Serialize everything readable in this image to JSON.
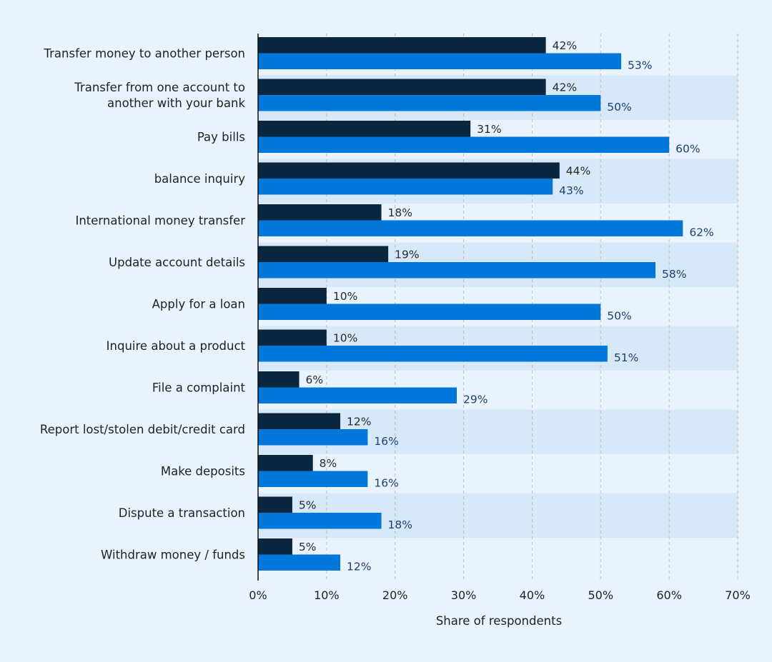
{
  "chart_data": {
    "type": "bar",
    "orientation": "horizontal",
    "title": "",
    "xlabel": "Share of respondents",
    "ylabel": "",
    "xlim": [
      0,
      70
    ],
    "xticks": [
      "0%",
      "10%",
      "20%",
      "30%",
      "40%",
      "50%",
      "60%",
      "70%"
    ],
    "grid": "vertical dashed",
    "legend": "none",
    "categories": [
      [
        "Transfer money to another person"
      ],
      [
        "Transfer from one account to",
        "another with your bank"
      ],
      [
        "Pay bills"
      ],
      [
        "balance inquiry"
      ],
      [
        "International money transfer"
      ],
      [
        "Update account details"
      ],
      [
        "Apply for a loan"
      ],
      [
        "Inquire about a product"
      ],
      [
        "File a complaint"
      ],
      [
        "Report lost/stolen debit/credit card"
      ],
      [
        "Make deposits"
      ],
      [
        "Dispute a transaction"
      ],
      [
        "Withdraw money / funds"
      ]
    ],
    "series": [
      {
        "color": "#0b2740",
        "values": [
          42,
          42,
          31,
          44,
          18,
          19,
          10,
          10,
          6,
          12,
          8,
          5,
          5
        ]
      },
      {
        "color": "#0077d9",
        "values": [
          53,
          50,
          60,
          43,
          62,
          58,
          50,
          51,
          29,
          16,
          16,
          18,
          12
        ]
      }
    ],
    "data_label_suffix": "%",
    "colors": {
      "background": "#e9f3fd",
      "stripe": "#d7e8f8",
      "grid": "#c9b9b9",
      "axis": "#111111"
    }
  }
}
